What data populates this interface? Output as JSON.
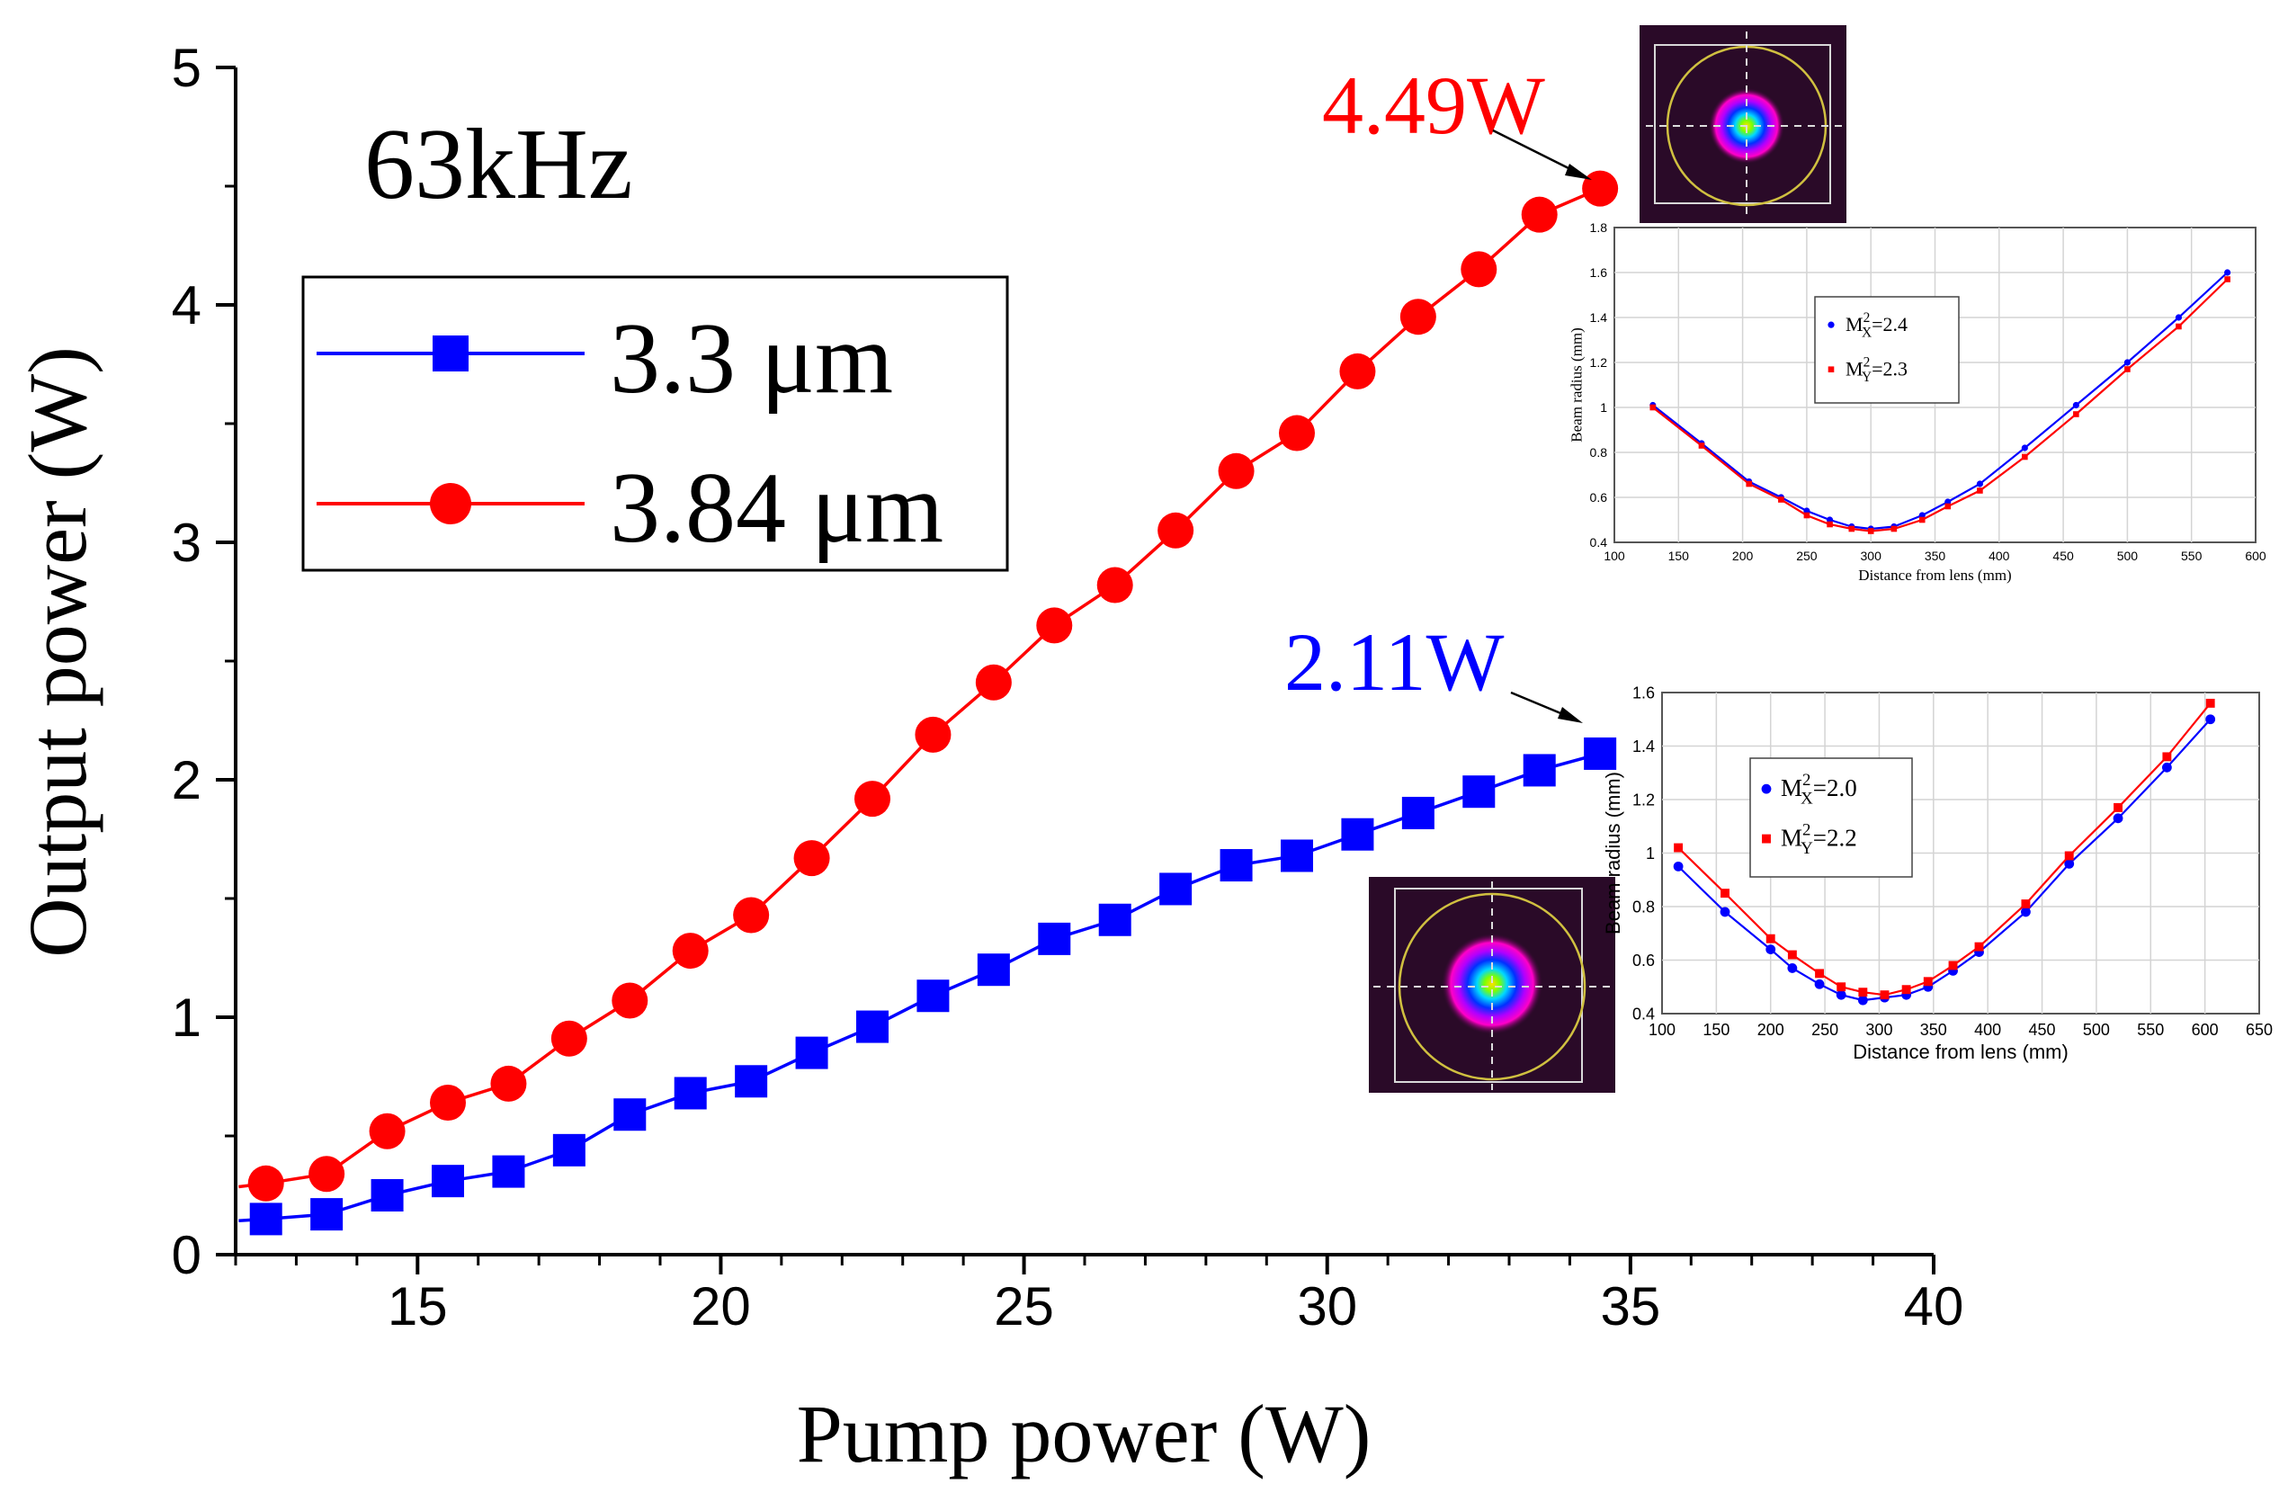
{
  "chart_data": [
    {
      "type": "line",
      "title": "",
      "annotation_freq": "63kHz",
      "xlabel": "Pump power (W)",
      "ylabel": "Output power (W)",
      "xlim": [
        12,
        40
      ],
      "ylim": [
        0,
        5
      ],
      "xticks": [
        15,
        20,
        25,
        30,
        35,
        40
      ],
      "yticks": [
        0,
        1,
        2,
        3,
        4,
        5
      ],
      "legend_position": "upper-left",
      "series": [
        {
          "name": "3.3 μm",
          "color": "#0000ff",
          "marker": "square",
          "x": [
            12.5,
            13.5,
            14.5,
            15.5,
            16.5,
            17.5,
            18.5,
            19.5,
            20.5,
            21.5,
            22.5,
            23.5,
            24.5,
            25.5,
            26.5,
            27.5,
            28.5,
            29.5,
            30.5,
            31.5,
            32.5,
            33.5,
            34.5
          ],
          "y": [
            0.15,
            0.17,
            0.25,
            0.31,
            0.35,
            0.44,
            0.59,
            0.68,
            0.73,
            0.85,
            0.96,
            1.09,
            1.2,
            1.33,
            1.41,
            1.54,
            1.64,
            1.68,
            1.77,
            1.86,
            1.95,
            2.04,
            2.11
          ]
        },
        {
          "name": "3.84 μm",
          "color": "#ff0000",
          "marker": "circle",
          "x": [
            12.5,
            13.5,
            14.5,
            15.5,
            16.5,
            17.5,
            18.5,
            19.5,
            20.5,
            21.5,
            22.5,
            23.5,
            24.5,
            25.5,
            26.5,
            27.5,
            28.5,
            29.5,
            30.5,
            31.5,
            32.5,
            33.5,
            34.5
          ],
          "y": [
            0.3,
            0.34,
            0.52,
            0.64,
            0.72,
            0.91,
            1.07,
            1.28,
            1.43,
            1.67,
            1.92,
            2.19,
            2.41,
            2.65,
            2.82,
            3.05,
            3.3,
            3.46,
            3.72,
            3.95,
            4.15,
            4.38,
            4.49
          ]
        }
      ],
      "annotations": [
        {
          "text": "4.49W",
          "color": "#ff0000",
          "x": 34.5,
          "y": 4.49
        },
        {
          "text": "2.11W",
          "color": "#0000ff",
          "x": 34.5,
          "y": 2.11
        }
      ]
    },
    {
      "type": "line",
      "role": "inset-upper",
      "xlabel": "Distance from lens (mm)",
      "ylabel": "Beam radius (mm)",
      "xlim": [
        100,
        600
      ],
      "ylim": [
        0.4,
        1.8
      ],
      "xticks": [
        100,
        150,
        200,
        250,
        300,
        350,
        400,
        450,
        500,
        550,
        600
      ],
      "yticks": [
        0.4,
        0.6,
        0.8,
        1,
        1.2,
        1.4,
        1.6,
        1.8
      ],
      "grid": true,
      "legend": [
        {
          "label_base": "M",
          "sup": "2",
          "sub": "X",
          "value": "=2.4",
          "color": "#0000ff"
        },
        {
          "label_base": "M",
          "sup": "2",
          "sub": "Y",
          "value": "=2.3",
          "color": "#ff0000"
        }
      ],
      "series": [
        {
          "name": "X",
          "color": "#0000ff",
          "x": [
            130,
            168,
            205,
            230,
            250,
            268,
            285,
            300,
            318,
            340,
            360,
            385,
            420,
            460,
            500,
            540,
            578
          ],
          "y": [
            1.01,
            0.84,
            0.67,
            0.6,
            0.54,
            0.5,
            0.47,
            0.46,
            0.47,
            0.52,
            0.58,
            0.66,
            0.82,
            1.01,
            1.2,
            1.4,
            1.6
          ]
        },
        {
          "name": "Y",
          "color": "#ff0000",
          "x": [
            130,
            168,
            205,
            230,
            250,
            268,
            285,
            300,
            318,
            340,
            360,
            385,
            420,
            460,
            500,
            540,
            578
          ],
          "y": [
            1.0,
            0.83,
            0.66,
            0.59,
            0.52,
            0.48,
            0.46,
            0.45,
            0.46,
            0.5,
            0.56,
            0.63,
            0.78,
            0.97,
            1.17,
            1.36,
            1.57
          ]
        }
      ]
    },
    {
      "type": "line",
      "role": "inset-lower",
      "xlabel": "Distance from lens (mm)",
      "ylabel": "Beam radius (mm)",
      "xlim": [
        100,
        650
      ],
      "ylim": [
        0.4,
        1.6
      ],
      "xticks": [
        100,
        150,
        200,
        250,
        300,
        350,
        400,
        450,
        500,
        550,
        600,
        650
      ],
      "yticks": [
        0.4,
        0.6,
        0.8,
        1,
        1.2,
        1.4,
        1.6
      ],
      "grid": true,
      "legend": [
        {
          "label_base": "M",
          "sup": "2",
          "sub": "X",
          "value": "=2.0",
          "color": "#0000ff"
        },
        {
          "label_base": "M",
          "sup": "2",
          "sub": "Y",
          "value": "=2.2",
          "color": "#ff0000"
        }
      ],
      "series": [
        {
          "name": "X",
          "color": "#0000ff",
          "x": [
            115,
            158,
            200,
            220,
            245,
            265,
            285,
            305,
            325,
            345,
            368,
            392,
            435,
            475,
            520,
            565,
            605
          ],
          "y": [
            0.95,
            0.78,
            0.64,
            0.57,
            0.51,
            0.47,
            0.45,
            0.46,
            0.47,
            0.5,
            0.56,
            0.63,
            0.78,
            0.96,
            1.13,
            1.32,
            1.5
          ]
        },
        {
          "name": "Y",
          "color": "#ff0000",
          "x": [
            115,
            158,
            200,
            220,
            245,
            265,
            285,
            305,
            325,
            345,
            368,
            392,
            435,
            475,
            520,
            565,
            605
          ],
          "y": [
            1.02,
            0.85,
            0.68,
            0.62,
            0.55,
            0.5,
            0.48,
            0.47,
            0.49,
            0.52,
            0.58,
            0.65,
            0.81,
            0.99,
            1.17,
            1.36,
            1.56
          ]
        }
      ]
    }
  ]
}
